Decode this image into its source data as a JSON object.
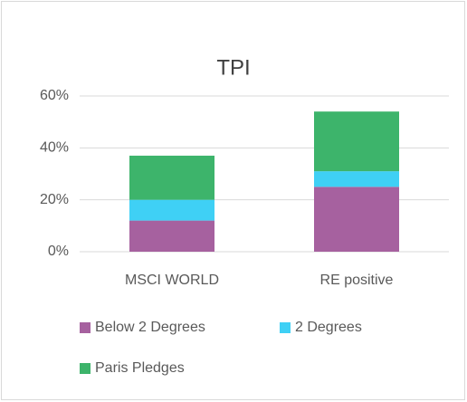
{
  "chart_data": {
    "type": "stacked_bar",
    "title": "TPI",
    "categories": [
      "MSCI WORLD",
      "RE positive"
    ],
    "series": [
      {
        "name": "Below 2 Degrees",
        "color": "#a6619f",
        "values": [
          12,
          25
        ]
      },
      {
        "name": "2 Degrees",
        "color": "#3fd0f5",
        "values": [
          8,
          6
        ]
      },
      {
        "name": "Paris Pledges",
        "color": "#3db46b",
        "values": [
          17,
          23
        ]
      }
    ],
    "ylim": [
      0,
      60
    ],
    "yticks": [
      {
        "value": 0,
        "label": "0%"
      },
      {
        "value": 20,
        "label": "20%"
      },
      {
        "value": 40,
        "label": "40%"
      },
      {
        "value": 60,
        "label": "60%"
      }
    ],
    "grid": true,
    "legend": "bottom"
  }
}
